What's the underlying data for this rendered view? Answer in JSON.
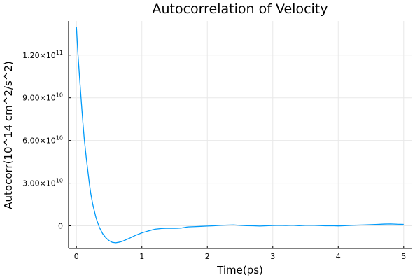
{
  "chart_data": {
    "type": "line",
    "title": "Autocorrelation of Velocity",
    "xlabel": "Time(ps)",
    "ylabel": "Autocorr(10^14 cm^2/s^2)",
    "xlim": [
      -0.12,
      5.12
    ],
    "ylim": [
      -16000000000,
      144000000000
    ],
    "x_ticks": [
      0,
      1,
      2,
      3,
      4,
      5
    ],
    "x_tick_labels": [
      "0",
      "1",
      "2",
      "3",
      "4",
      "5"
    ],
    "y_ticks": [
      0,
      30000000000,
      60000000000,
      90000000000,
      120000000000
    ],
    "y_tick_labels": [
      {
        "base": "0",
        "exp": ""
      },
      {
        "base": "3.00×10",
        "exp": "10"
      },
      {
        "base": "6.00×10",
        "exp": "10"
      },
      {
        "base": "9.00×10",
        "exp": "10"
      },
      {
        "base": "1.20×10",
        "exp": "11"
      }
    ],
    "grid": true,
    "legend": "none",
    "series": [
      {
        "color": "#009af9",
        "x": [
          0,
          0.02,
          0.05,
          0.08,
          0.1,
          0.12,
          0.15,
          0.18,
          0.2,
          0.22,
          0.25,
          0.3,
          0.35,
          0.4,
          0.45,
          0.5,
          0.55,
          0.6,
          0.65,
          0.7,
          0.8,
          0.9,
          1.0,
          1.1,
          1.2,
          1.3,
          1.4,
          1.5,
          1.6,
          1.7,
          1.8,
          1.9,
          2.0,
          2.1,
          2.2,
          2.3,
          2.4,
          2.5,
          2.6,
          2.7,
          2.8,
          2.9,
          3.0,
          3.1,
          3.2,
          3.3,
          3.4,
          3.5,
          3.6,
          3.7,
          3.8,
          3.9,
          4.0,
          4.1,
          4.2,
          4.3,
          4.4,
          4.5,
          4.6,
          4.7,
          4.8,
          4.9,
          5.0
        ],
        "values": [
          140000000000,
          123000000000,
          103000000000,
          84000000000,
          72000000000,
          61000000000,
          48000000000,
          36500000000,
          29000000000,
          22500000000,
          15000000000,
          5500000000,
          -1000000000,
          -5500000000,
          -8500000000,
          -10500000000,
          -11700000000,
          -12000000000,
          -11600000000,
          -11000000000,
          -9000000000,
          -6800000000,
          -5000000000,
          -3600000000,
          -2400000000,
          -1900000000,
          -1700000000,
          -1800000000,
          -1600000000,
          -800000000,
          -600000000,
          -400000000,
          -200000000,
          0,
          300000000,
          500000000,
          600000000,
          300000000,
          100000000,
          0,
          -200000000,
          0,
          200000000,
          300000000,
          200000000,
          400000000,
          100000000,
          300000000,
          400000000,
          200000000,
          0,
          100000000,
          -100000000,
          100000000,
          300000000,
          500000000,
          600000000,
          800000000,
          1000000000,
          1200000000,
          1300000000,
          1100000000,
          1000000000
        ]
      }
    ]
  }
}
